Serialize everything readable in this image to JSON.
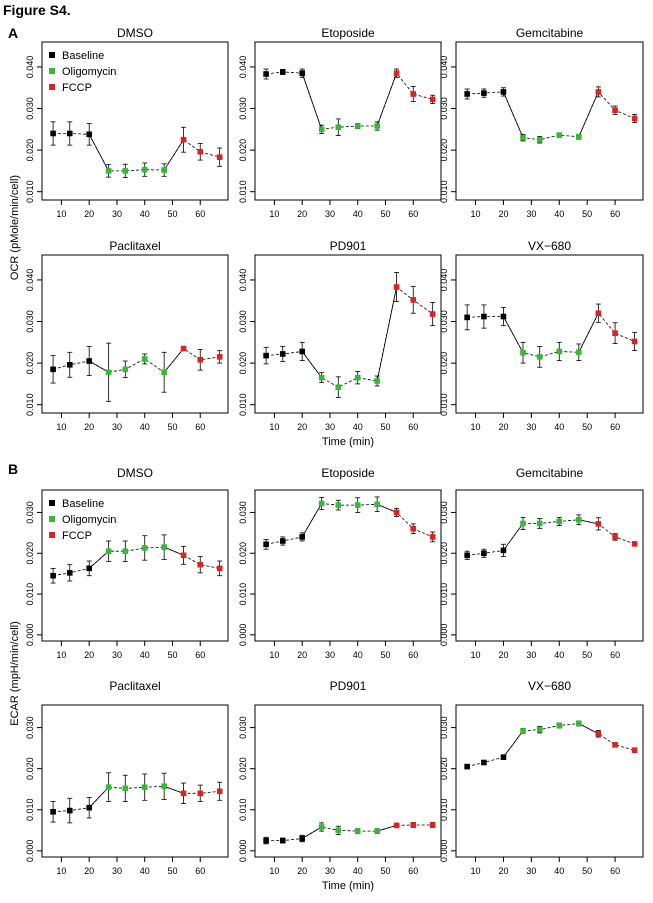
{
  "figure_title": "Figure S4.",
  "panel_letters": [
    "A",
    "B"
  ],
  "legend_entries": [
    {
      "label": "Baseline",
      "color": "#000000"
    },
    {
      "label": "Oligomycin",
      "color": "#33bb33"
    },
    {
      "label": "FCCP",
      "color": "#dd2222"
    }
  ],
  "phase_colors": [
    "#000000",
    "#000000",
    "#000000",
    "#33bb33",
    "#33bb33",
    "#33bb33",
    "#33bb33",
    "#dd2222",
    "#dd2222",
    "#dd2222"
  ],
  "chart_data": [
    {
      "type": "line",
      "section": "A",
      "title": "DMSO",
      "ylabel": "OCR (pMole/min/cell)",
      "xlabel": "",
      "x": [
        7,
        13,
        20,
        27,
        33,
        40,
        47,
        54,
        60,
        67
      ],
      "y": [
        0.024,
        0.024,
        0.0238,
        0.015,
        0.015,
        0.0153,
        0.0152,
        0.0225,
        0.0196,
        0.0183
      ],
      "err": [
        0.0028,
        0.0028,
        0.0026,
        0.0015,
        0.0016,
        0.0016,
        0.0015,
        0.003,
        0.002,
        0.0022
      ],
      "xlim": [
        3,
        70
      ],
      "ylim": [
        0.008,
        0.046
      ],
      "xticks": [
        10,
        20,
        30,
        40,
        50,
        60
      ],
      "yticks": [
        0.01,
        0.02,
        0.03,
        0.04
      ],
      "ytick_labels": [
        "0.010",
        "0.020",
        "0.030",
        "0.040"
      ]
    },
    {
      "type": "line",
      "section": "A",
      "title": "Etoposide",
      "ylabel": "",
      "xlabel": "",
      "x": [
        7,
        13,
        20,
        27,
        33,
        40,
        47,
        54,
        60,
        67
      ],
      "y": [
        0.0383,
        0.0388,
        0.0385,
        0.025,
        0.0255,
        0.0258,
        0.0258,
        0.0385,
        0.0335,
        0.0322
      ],
      "err": [
        0.0012,
        0.0006,
        0.001,
        0.001,
        0.002,
        0.0006,
        0.001,
        0.001,
        0.0018,
        0.001
      ],
      "xlim": [
        3,
        70
      ],
      "ylim": [
        0.008,
        0.046
      ],
      "xticks": [
        10,
        20,
        30,
        40,
        50,
        60
      ],
      "yticks": [
        0.01,
        0.02,
        0.03,
        0.04
      ],
      "ytick_labels": [
        "0.010",
        "0.020",
        "0.030",
        "0.040"
      ]
    },
    {
      "type": "line",
      "section": "A",
      "title": "Gemcitabine",
      "ylabel": "",
      "xlabel": "",
      "x": [
        7,
        13,
        20,
        27,
        33,
        40,
        47,
        54,
        60,
        67
      ],
      "y": [
        0.0335,
        0.0337,
        0.034,
        0.023,
        0.0225,
        0.0236,
        0.0232,
        0.034,
        0.0296,
        0.0276
      ],
      "err": [
        0.0012,
        0.001,
        0.001,
        0.0008,
        0.0008,
        0.0005,
        0.0006,
        0.0012,
        0.001,
        0.001
      ],
      "xlim": [
        3,
        70
      ],
      "ylim": [
        0.008,
        0.046
      ],
      "xticks": [
        10,
        20,
        30,
        40,
        50,
        60
      ],
      "yticks": [
        0.01,
        0.02,
        0.03,
        0.04
      ],
      "ytick_labels": [
        "0.010",
        "0.020",
        "0.030",
        "0.040"
      ]
    },
    {
      "type": "line",
      "section": "A",
      "title": "Paclitaxel",
      "ylabel": "",
      "xlabel": "",
      "x": [
        7,
        13,
        20,
        27,
        33,
        40,
        47,
        54,
        60,
        67
      ],
      "y": [
        0.0185,
        0.0196,
        0.0205,
        0.0178,
        0.0185,
        0.021,
        0.0178,
        0.0235,
        0.0208,
        0.0215
      ],
      "err": [
        0.0033,
        0.003,
        0.0035,
        0.007,
        0.002,
        0.0012,
        0.0048,
        0.0005,
        0.0025,
        0.0015
      ],
      "xlim": [
        3,
        70
      ],
      "ylim": [
        0.008,
        0.046
      ],
      "xticks": [
        10,
        20,
        30,
        40,
        50,
        60
      ],
      "yticks": [
        0.01,
        0.02,
        0.03,
        0.04
      ],
      "ytick_labels": [
        "0.010",
        "0.020",
        "0.030",
        "0.040"
      ]
    },
    {
      "type": "line",
      "section": "A",
      "title": "PD901",
      "ylabel": "",
      "xlabel": "Time (min)",
      "x": [
        7,
        13,
        20,
        27,
        33,
        40,
        47,
        54,
        60,
        67
      ],
      "y": [
        0.0218,
        0.0222,
        0.0228,
        0.0165,
        0.0142,
        0.0165,
        0.0157,
        0.0383,
        0.0352,
        0.0318
      ],
      "err": [
        0.002,
        0.0018,
        0.0022,
        0.0012,
        0.0025,
        0.0015,
        0.0012,
        0.0035,
        0.0032,
        0.0028
      ],
      "xlim": [
        3,
        70
      ],
      "ylim": [
        0.008,
        0.046
      ],
      "xticks": [
        10,
        20,
        30,
        40,
        50,
        60
      ],
      "yticks": [
        0.01,
        0.02,
        0.03,
        0.04
      ],
      "ytick_labels": [
        "0.010",
        "0.020",
        "0.030",
        "0.040"
      ]
    },
    {
      "type": "line",
      "section": "A",
      "title": "VX−680",
      "ylabel": "",
      "xlabel": "",
      "x": [
        7,
        13,
        20,
        27,
        33,
        40,
        47,
        54,
        60,
        67
      ],
      "y": [
        0.031,
        0.0312,
        0.0312,
        0.0225,
        0.0215,
        0.0228,
        0.0226,
        0.032,
        0.0272,
        0.0252
      ],
      "err": [
        0.003,
        0.0028,
        0.0022,
        0.0025,
        0.0025,
        0.0022,
        0.002,
        0.0022,
        0.0025,
        0.0022
      ],
      "xlim": [
        3,
        70
      ],
      "ylim": [
        0.008,
        0.046
      ],
      "xticks": [
        10,
        20,
        30,
        40,
        50,
        60
      ],
      "yticks": [
        0.01,
        0.02,
        0.03,
        0.04
      ],
      "ytick_labels": [
        "0.010",
        "0.020",
        "0.030",
        "0.040"
      ]
    },
    {
      "type": "line",
      "section": "B",
      "title": "DMSO",
      "ylabel": "ECAR (mpH/min/cell)",
      "xlabel": "",
      "x": [
        7,
        13,
        20,
        27,
        33,
        40,
        47,
        54,
        60,
        67
      ],
      "y": [
        0.0145,
        0.0152,
        0.0163,
        0.0205,
        0.0205,
        0.0213,
        0.0215,
        0.0195,
        0.0172,
        0.0163
      ],
      "err": [
        0.0018,
        0.002,
        0.0018,
        0.0025,
        0.0025,
        0.003,
        0.003,
        0.0022,
        0.002,
        0.0018
      ],
      "xlim": [
        3,
        70
      ],
      "ylim": [
        -0.0015,
        0.0355
      ],
      "xticks": [
        10,
        20,
        30,
        40,
        50,
        60
      ],
      "yticks": [
        0.0,
        0.01,
        0.02,
        0.03
      ],
      "ytick_labels": [
        "0.000",
        "0.010",
        "0.020",
        "0.030"
      ]
    },
    {
      "type": "line",
      "section": "B",
      "title": "Etoposide",
      "ylabel": "",
      "xlabel": "",
      "x": [
        7,
        13,
        20,
        27,
        33,
        40,
        47,
        54,
        60,
        67
      ],
      "y": [
        0.0222,
        0.023,
        0.024,
        0.0322,
        0.0318,
        0.0318,
        0.032,
        0.03,
        0.026,
        0.024
      ],
      "err": [
        0.0012,
        0.001,
        0.001,
        0.0015,
        0.0012,
        0.0018,
        0.0018,
        0.001,
        0.0012,
        0.0012
      ],
      "xlim": [
        3,
        70
      ],
      "ylim": [
        -0.0015,
        0.0355
      ],
      "xticks": [
        10,
        20,
        30,
        40,
        50,
        60
      ],
      "yticks": [
        0.0,
        0.01,
        0.02,
        0.03
      ],
      "ytick_labels": [
        "0.000",
        "0.010",
        "0.020",
        "0.030"
      ]
    },
    {
      "type": "line",
      "section": "B",
      "title": "Gemcitabine",
      "ylabel": "",
      "xlabel": "",
      "x": [
        7,
        13,
        20,
        27,
        33,
        40,
        47,
        54,
        60,
        67
      ],
      "y": [
        0.0195,
        0.02,
        0.0207,
        0.0273,
        0.0273,
        0.0278,
        0.0282,
        0.0272,
        0.024,
        0.0223
      ],
      "err": [
        0.001,
        0.001,
        0.0015,
        0.0015,
        0.0012,
        0.001,
        0.0012,
        0.0015,
        0.0008,
        0.0005
      ],
      "xlim": [
        3,
        70
      ],
      "ylim": [
        -0.0015,
        0.0355
      ],
      "xticks": [
        10,
        20,
        30,
        40,
        50,
        60
      ],
      "yticks": [
        0.0,
        0.01,
        0.02,
        0.03
      ],
      "ytick_labels": [
        "0.000",
        "0.010",
        "0.020",
        "0.030"
      ]
    },
    {
      "type": "line",
      "section": "B",
      "title": "Paclitaxel",
      "ylabel": "",
      "xlabel": "",
      "x": [
        7,
        13,
        20,
        27,
        33,
        40,
        47,
        54,
        60,
        67
      ],
      "y": [
        0.0095,
        0.0098,
        0.0105,
        0.0155,
        0.0152,
        0.0155,
        0.0157,
        0.014,
        0.014,
        0.0145
      ],
      "err": [
        0.0025,
        0.003,
        0.0025,
        0.0035,
        0.0032,
        0.0032,
        0.0032,
        0.0025,
        0.002,
        0.0022
      ],
      "xlim": [
        3,
        70
      ],
      "ylim": [
        -0.0015,
        0.0355
      ],
      "xticks": [
        10,
        20,
        30,
        40,
        50,
        60
      ],
      "yticks": [
        0.0,
        0.01,
        0.02,
        0.03
      ],
      "ytick_labels": [
        "0.000",
        "0.010",
        "0.020",
        "0.030"
      ]
    },
    {
      "type": "line",
      "section": "B",
      "title": "PD901",
      "ylabel": "",
      "xlabel": "Time (min)",
      "x": [
        7,
        13,
        20,
        27,
        33,
        40,
        47,
        54,
        60,
        67
      ],
      "y": [
        0.0025,
        0.0025,
        0.003,
        0.0058,
        0.005,
        0.0048,
        0.0048,
        0.0062,
        0.0063,
        0.0063
      ],
      "err": [
        0.0008,
        0.0006,
        0.0008,
        0.001,
        0.001,
        0.0006,
        0.0006,
        0.0005,
        0.0006,
        0.0006
      ],
      "xlim": [
        3,
        70
      ],
      "ylim": [
        -0.0015,
        0.0355
      ],
      "xticks": [
        10,
        20,
        30,
        40,
        50,
        60
      ],
      "yticks": [
        0.0,
        0.01,
        0.02,
        0.03
      ],
      "ytick_labels": [
        "0.000",
        "0.010",
        "0.020",
        "0.030"
      ]
    },
    {
      "type": "line",
      "section": "B",
      "title": "VX−680",
      "ylabel": "",
      "xlabel": "",
      "x": [
        7,
        13,
        20,
        27,
        33,
        40,
        47,
        54,
        60,
        67
      ],
      "y": [
        0.0205,
        0.0215,
        0.0228,
        0.0292,
        0.0295,
        0.0305,
        0.031,
        0.0285,
        0.0258,
        0.0245
      ],
      "err": [
        0.0003,
        0.0003,
        0.0003,
        0.0006,
        0.0008,
        0.0006,
        0.0006,
        0.0008,
        0.0004,
        0.0005
      ],
      "xlim": [
        3,
        70
      ],
      "ylim": [
        -0.0015,
        0.0355
      ],
      "xticks": [
        10,
        20,
        30,
        40,
        50,
        60
      ],
      "yticks": [
        0.0,
        0.01,
        0.02,
        0.03
      ],
      "ytick_labels": [
        "0.000",
        "0.010",
        "0.020",
        "0.030"
      ]
    }
  ]
}
